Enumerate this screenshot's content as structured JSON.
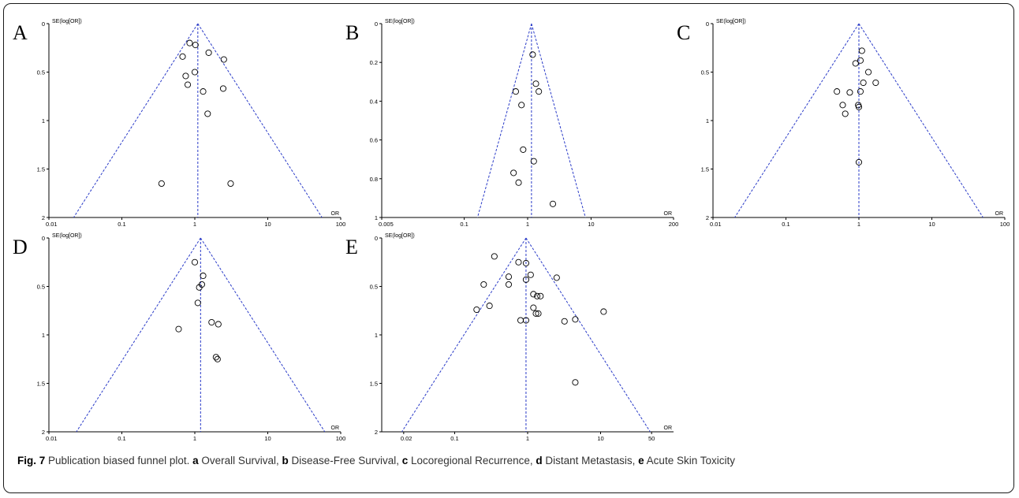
{
  "chart_data": [
    {
      "type": "scatter",
      "panel_letter": "A",
      "ylabel": "SE(log[OR])",
      "xlabel": "OR",
      "x_scale": "log",
      "xlim": [
        0.01,
        100
      ],
      "ylim": [
        2,
        0
      ],
      "y_reversed": true,
      "x_ticks": [
        "0.01",
        "0.1",
        "1",
        "10",
        "100"
      ],
      "y_ticks": [
        "0",
        "0.5",
        "1",
        "1.5",
        "2"
      ],
      "pooled_or": 1.1,
      "points": [
        {
          "or": 0.85,
          "se": 0.2
        },
        {
          "or": 1.02,
          "se": 0.22
        },
        {
          "or": 0.68,
          "se": 0.34
        },
        {
          "or": 1.55,
          "se": 0.3
        },
        {
          "or": 2.5,
          "se": 0.37
        },
        {
          "or": 1.0,
          "se": 0.5
        },
        {
          "or": 0.75,
          "se": 0.54
        },
        {
          "or": 0.8,
          "se": 0.63
        },
        {
          "or": 1.3,
          "se": 0.7
        },
        {
          "or": 2.45,
          "se": 0.67
        },
        {
          "or": 1.5,
          "se": 0.93
        },
        {
          "or": 0.35,
          "se": 1.65
        },
        {
          "or": 3.1,
          "se": 1.65
        }
      ]
    },
    {
      "type": "scatter",
      "panel_letter": "B",
      "ylabel": "SE(log[OR])",
      "xlabel": "OR",
      "x_scale": "log",
      "xlim": [
        0.005,
        200
      ],
      "ylim": [
        1,
        0
      ],
      "y_reversed": true,
      "x_ticks": [
        "0.005",
        "0.1",
        "1",
        "10",
        "200"
      ],
      "y_ticks": [
        "0",
        "0.2",
        "0.4",
        "0.6",
        "0.8",
        "1"
      ],
      "pooled_or": 1.15,
      "points": [
        {
          "or": 1.2,
          "se": 0.16
        },
        {
          "or": 1.35,
          "se": 0.31
        },
        {
          "or": 1.5,
          "se": 0.35
        },
        {
          "or": 0.65,
          "se": 0.35
        },
        {
          "or": 0.8,
          "se": 0.42
        },
        {
          "or": 0.85,
          "se": 0.65
        },
        {
          "or": 1.25,
          "se": 0.71
        },
        {
          "or": 0.6,
          "se": 0.77
        },
        {
          "or": 0.72,
          "se": 0.82
        },
        {
          "or": 2.5,
          "se": 0.93
        }
      ]
    },
    {
      "type": "scatter",
      "panel_letter": "C",
      "ylabel": "SE(log[OR])",
      "xlabel": "OR",
      "x_scale": "log",
      "xlim": [
        0.01,
        100
      ],
      "ylim": [
        2,
        0
      ],
      "y_reversed": true,
      "x_ticks": [
        "0.01",
        "0.1",
        "1",
        "10",
        "100"
      ],
      "y_ticks": [
        "0",
        "0.5",
        "1",
        "1.5",
        "2"
      ],
      "pooled_or": 1.0,
      "points": [
        {
          "or": 1.1,
          "se": 0.28
        },
        {
          "or": 1.05,
          "se": 0.38
        },
        {
          "or": 0.9,
          "se": 0.41
        },
        {
          "or": 1.35,
          "se": 0.5
        },
        {
          "or": 1.15,
          "se": 0.61
        },
        {
          "or": 1.7,
          "se": 0.61
        },
        {
          "or": 0.5,
          "se": 0.7
        },
        {
          "or": 0.75,
          "se": 0.71
        },
        {
          "or": 1.05,
          "se": 0.7
        },
        {
          "or": 0.6,
          "se": 0.84
        },
        {
          "or": 0.98,
          "se": 0.84
        },
        {
          "or": 1.0,
          "se": 0.86
        },
        {
          "or": 0.65,
          "se": 0.93
        },
        {
          "or": 1.0,
          "se": 1.43
        }
      ]
    },
    {
      "type": "scatter",
      "panel_letter": "D",
      "ylabel": "SE(log[OR])",
      "xlabel": "OR",
      "x_scale": "log",
      "xlim": [
        0.01,
        100
      ],
      "ylim": [
        2,
        0
      ],
      "y_reversed": true,
      "x_ticks": [
        "0.01",
        "0.1",
        "1",
        "10",
        "100"
      ],
      "y_ticks": [
        "0",
        "0.5",
        "1",
        "1.5",
        "2"
      ],
      "pooled_or": 1.2,
      "points": [
        {
          "or": 1.0,
          "se": 0.25
        },
        {
          "or": 1.3,
          "se": 0.39
        },
        {
          "or": 1.25,
          "se": 0.48
        },
        {
          "or": 1.15,
          "se": 0.51
        },
        {
          "or": 1.1,
          "se": 0.67
        },
        {
          "or": 1.7,
          "se": 0.87
        },
        {
          "or": 2.1,
          "se": 0.89
        },
        {
          "or": 0.6,
          "se": 0.94
        },
        {
          "or": 1.95,
          "se": 1.23
        },
        {
          "or": 2.05,
          "se": 1.25
        }
      ]
    },
    {
      "type": "scatter",
      "panel_letter": "E",
      "ylabel": "SE(log[OR])",
      "xlabel": "OR",
      "x_scale": "log",
      "xlim": [
        0.01,
        100
      ],
      "ylim": [
        2,
        0
      ],
      "y_reversed": true,
      "x_ticks": [
        "0.02",
        "0.1",
        "1",
        "10",
        "50"
      ],
      "y_ticks": [
        "0",
        "0.5",
        "1",
        "1.5",
        "2"
      ],
      "pooled_or": 0.95,
      "points": [
        {
          "or": 0.35,
          "se": 0.19
        },
        {
          "or": 0.75,
          "se": 0.25
        },
        {
          "or": 0.95,
          "se": 0.26
        },
        {
          "or": 0.55,
          "se": 0.4
        },
        {
          "or": 1.1,
          "se": 0.38
        },
        {
          "or": 2.5,
          "se": 0.41
        },
        {
          "or": 0.95,
          "se": 0.43
        },
        {
          "or": 0.25,
          "se": 0.48
        },
        {
          "or": 0.55,
          "se": 0.48
        },
        {
          "or": 1.2,
          "se": 0.58
        },
        {
          "or": 1.35,
          "se": 0.6
        },
        {
          "or": 1.5,
          "se": 0.6
        },
        {
          "or": 0.3,
          "se": 0.7
        },
        {
          "or": 1.2,
          "se": 0.72
        },
        {
          "or": 0.2,
          "se": 0.74
        },
        {
          "or": 1.3,
          "se": 0.78
        },
        {
          "or": 1.4,
          "se": 0.78
        },
        {
          "or": 11,
          "se": 0.76
        },
        {
          "or": 0.8,
          "se": 0.85
        },
        {
          "or": 0.95,
          "se": 0.85
        },
        {
          "or": 3.2,
          "se": 0.86
        },
        {
          "or": 4.5,
          "se": 0.84
        },
        {
          "or": 4.5,
          "se": 1.49
        }
      ]
    }
  ],
  "colors": {
    "funnel": "#2a3bc8",
    "axis": "#000000",
    "marker": "#000000"
  },
  "caption": {
    "fig_label": "Fig. 7",
    "text": " Publication biased funnel plot. ",
    "items": [
      {
        "key": "a",
        "label": " Overall Survival, "
      },
      {
        "key": "b",
        "label": " Disease-Free Survival, "
      },
      {
        "key": "c",
        "label": " Locoregional Recurrence, "
      },
      {
        "key": "d",
        "label": " Distant Metastasis, "
      },
      {
        "key": "e",
        "label": " Acute Skin Toxicity"
      }
    ]
  }
}
